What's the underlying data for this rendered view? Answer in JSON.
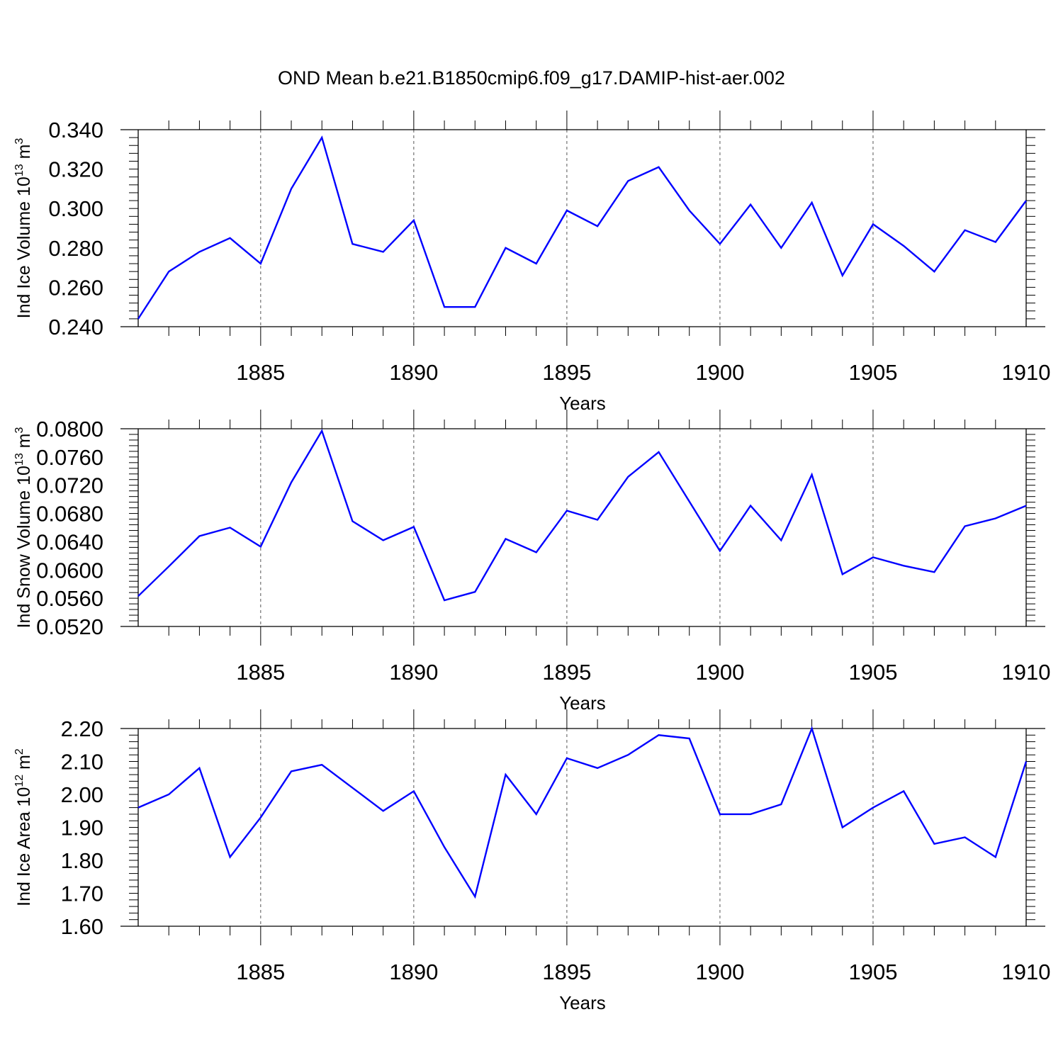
{
  "figure": {
    "title": "OND Mean b.e21.B1850cmip6.f09_g17.DAMIP-hist-aer.002",
    "line_color": "#0000ff",
    "axis_color": "#000000",
    "grid_color": "#555555"
  },
  "chart_data": [
    {
      "type": "line",
      "title": "OND Mean b.e21.B1850cmip6.f09_g17.DAMIP-hist-aer.002",
      "xlabel": "Years",
      "ylabel": {
        "base": "Ind Ice Volume 10",
        "exp": "13",
        "unit": " m",
        "unit_exp": "3"
      },
      "xlim": [
        1881,
        1910
      ],
      "ylim": [
        0.24,
        0.34
      ],
      "x_ticks": [
        1885,
        1890,
        1895,
        1900,
        1905,
        1910
      ],
      "y_ticks": [
        "0.240",
        "0.260",
        "0.280",
        "0.300",
        "0.320",
        "0.340"
      ],
      "y_minor_step": 0.004,
      "grid": "vertical dashed at major x ticks",
      "x": [
        1881,
        1882,
        1883,
        1884,
        1885,
        1886,
        1887,
        1888,
        1889,
        1890,
        1891,
        1892,
        1893,
        1894,
        1895,
        1896,
        1897,
        1898,
        1899,
        1900,
        1901,
        1902,
        1903,
        1904,
        1905,
        1906,
        1907,
        1908,
        1909,
        1910
      ],
      "series": [
        {
          "name": "Ind Ice Volume",
          "values": [
            0.244,
            0.268,
            0.278,
            0.285,
            0.272,
            0.31,
            0.336,
            0.282,
            0.278,
            0.294,
            0.25,
            0.25,
            0.28,
            0.272,
            0.299,
            0.291,
            0.314,
            0.321,
            0.299,
            0.282,
            0.302,
            0.28,
            0.303,
            0.266,
            0.292,
            0.281,
            0.268,
            0.289,
            0.283,
            0.304
          ]
        }
      ]
    },
    {
      "type": "line",
      "title": "",
      "xlabel": "Years",
      "ylabel": {
        "base": "Ind Snow Volume 10",
        "exp": "13",
        "unit": " m",
        "unit_exp": "3"
      },
      "xlim": [
        1881,
        1910
      ],
      "ylim": [
        0.052,
        0.08
      ],
      "x_ticks": [
        1885,
        1890,
        1895,
        1900,
        1905,
        1910
      ],
      "y_ticks": [
        "0.0520",
        "0.0560",
        "0.0600",
        "0.0640",
        "0.0680",
        "0.0720",
        "0.0760",
        "0.0800"
      ],
      "y_minor_step": 0.0008,
      "grid": "vertical dashed at major x ticks",
      "x": [
        1881,
        1882,
        1883,
        1884,
        1885,
        1886,
        1887,
        1888,
        1889,
        1890,
        1891,
        1892,
        1893,
        1894,
        1895,
        1896,
        1897,
        1898,
        1899,
        1900,
        1901,
        1902,
        1903,
        1904,
        1905,
        1906,
        1907,
        1908,
        1909,
        1910
      ],
      "series": [
        {
          "name": "Ind Snow Volume",
          "values": [
            0.0563,
            0.0605,
            0.0648,
            0.066,
            0.0633,
            0.0724,
            0.0797,
            0.0669,
            0.0642,
            0.0661,
            0.0557,
            0.0569,
            0.0644,
            0.0625,
            0.0684,
            0.0671,
            0.0732,
            0.0767,
            0.0697,
            0.0627,
            0.0691,
            0.0642,
            0.0735,
            0.0594,
            0.0618,
            0.0606,
            0.0597,
            0.0662,
            0.0673,
            0.0691
          ]
        }
      ]
    },
    {
      "type": "line",
      "title": "",
      "xlabel": "Years",
      "ylabel": {
        "base": "Ind Ice Area 10",
        "exp": "12",
        "unit": " m",
        "unit_exp": "2"
      },
      "xlim": [
        1881,
        1910
      ],
      "ylim": [
        1.6,
        2.2
      ],
      "x_ticks": [
        1885,
        1890,
        1895,
        1900,
        1905,
        1910
      ],
      "y_ticks": [
        "1.60",
        "1.70",
        "1.80",
        "1.90",
        "2.00",
        "2.10",
        "2.20"
      ],
      "y_minor_step": 0.02,
      "grid": "vertical dashed at major x ticks",
      "x": [
        1881,
        1882,
        1883,
        1884,
        1885,
        1886,
        1887,
        1888,
        1889,
        1890,
        1891,
        1892,
        1893,
        1894,
        1895,
        1896,
        1897,
        1898,
        1899,
        1900,
        1901,
        1902,
        1903,
        1904,
        1905,
        1906,
        1907,
        1908,
        1909,
        1910
      ],
      "series": [
        {
          "name": "Ind Ice Area",
          "values": [
            1.96,
            2.0,
            2.08,
            1.81,
            1.93,
            2.07,
            2.09,
            2.02,
            1.95,
            2.01,
            1.84,
            1.69,
            2.06,
            1.94,
            2.11,
            2.08,
            2.12,
            2.18,
            2.17,
            1.94,
            1.94,
            1.97,
            2.2,
            1.9,
            1.96,
            2.01,
            1.85,
            1.87,
            1.81,
            2.1
          ]
        }
      ]
    }
  ]
}
